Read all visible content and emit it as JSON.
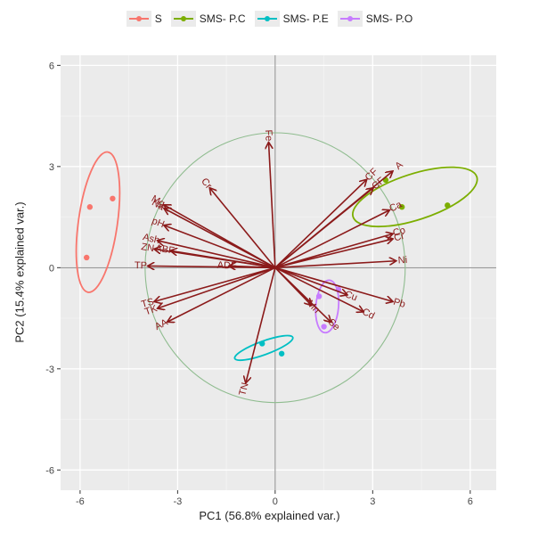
{
  "legend": {
    "items": [
      {
        "label": "S",
        "color": "#F8766D"
      },
      {
        "label": "SMS- P.C",
        "color": "#7CAE00"
      },
      {
        "label": "SMS- P.E",
        "color": "#00BFC4"
      },
      {
        "label": "SMS- P.O",
        "color": "#C77CFF"
      }
    ]
  },
  "chart_data": {
    "type": "scatter",
    "subtype": "pca-biplot",
    "xlabel": "PC1 (56.8% explained var.)",
    "ylabel": "PC2 (15.4% explained var.)",
    "xlim": [
      -6.6,
      6.8
    ],
    "ylim": [
      -6.6,
      6.3
    ],
    "xticks": [
      -6,
      -3,
      0,
      3,
      6
    ],
    "yticks": [
      -6,
      -3,
      0,
      3,
      6
    ],
    "xtick_labels": [
      "-6",
      "-3",
      "0",
      "3",
      "6"
    ],
    "ytick_labels": [
      "-6",
      "-3",
      "0",
      "3",
      "6"
    ],
    "grid": true,
    "legend_position": "top",
    "panel_color": "#EBEBEB",
    "arrow_color": "#8B1A1A",
    "circle_color": "#8FBC8F",
    "circle_radius": 4,
    "groups": [
      {
        "name": "S",
        "color": "#F8766D",
        "points": [
          [
            -5.7,
            1.8
          ],
          [
            -5.0,
            2.05
          ],
          [
            -5.8,
            0.3
          ]
        ],
        "ellipse": {
          "cx": -5.45,
          "cy": 1.35,
          "rx": 0.6,
          "ry": 2.1,
          "angle": 8
        }
      },
      {
        "name": "SMS- P.C",
        "color": "#7CAE00",
        "points": [
          [
            3.4,
            2.6
          ],
          [
            3.9,
            1.8
          ],
          [
            5.3,
            1.85
          ]
        ],
        "ellipse": {
          "cx": 4.3,
          "cy": 2.1,
          "rx": 2.0,
          "ry": 0.68,
          "angle": -18
        }
      },
      {
        "name": "SMS- P.E",
        "color": "#00BFC4",
        "points": [
          [
            -0.4,
            -2.25
          ],
          [
            0.2,
            -2.55
          ]
        ],
        "ellipse": {
          "cx": -0.35,
          "cy": -2.38,
          "rx": 0.95,
          "ry": 0.2,
          "angle": -20
        }
      },
      {
        "name": "SMS- P.O",
        "color": "#C77CFF",
        "points": [
          [
            1.35,
            -0.85
          ],
          [
            1.95,
            -0.65
          ],
          [
            1.5,
            -1.75
          ]
        ],
        "ellipse": {
          "cx": 1.6,
          "cy": -1.15,
          "rx": 0.35,
          "ry": 0.78,
          "angle": 5
        }
      }
    ],
    "loadings": [
      {
        "label": "Fe",
        "x": -0.2,
        "y": 3.7
      },
      {
        "label": "Cr",
        "x": -2.0,
        "y": 2.35
      },
      {
        "label": "Mg",
        "x": -3.4,
        "y": 1.85
      },
      {
        "label": "Na",
        "x": -3.4,
        "y": 1.75
      },
      {
        "label": "pH",
        "x": -3.4,
        "y": 1.25
      },
      {
        "label": "Ash",
        "x": -3.6,
        "y": 0.8
      },
      {
        "label": "ZN",
        "x": -3.7,
        "y": 0.55
      },
      {
        "label": "ABF",
        "x": -3.2,
        "y": 0.5
      },
      {
        "label": "TP",
        "x": -3.9,
        "y": 0.05
      },
      {
        "label": "ADF",
        "x": -1.4,
        "y": 0.05
      },
      {
        "label": "TS",
        "x": -3.7,
        "y": -1.0
      },
      {
        "label": "TK",
        "x": -3.6,
        "y": -1.2
      },
      {
        "label": "AA",
        "x": -3.3,
        "y": -1.6
      },
      {
        "label": "TN",
        "x": -0.9,
        "y": -3.4
      },
      {
        "label": "Mn",
        "x": 1.1,
        "y": -1.1
      },
      {
        "label": "Se",
        "x": 1.7,
        "y": -1.6
      },
      {
        "label": "Cu",
        "x": 2.2,
        "y": -0.8
      },
      {
        "label": "Cd",
        "x": 2.7,
        "y": -1.3
      },
      {
        "label": "Pb",
        "x": 3.6,
        "y": -1.0
      },
      {
        "label": "Ni",
        "x": 3.7,
        "y": 0.2
      },
      {
        "label": "Cr",
        "x": 3.6,
        "y": 0.85
      },
      {
        "label": "Co",
        "x": 3.6,
        "y": 1.0
      },
      {
        "label": "Ca",
        "x": 3.5,
        "y": 1.7
      },
      {
        "label": "CF",
        "x": 3.0,
        "y": 2.35
      },
      {
        "label": "CF",
        "x": 2.8,
        "y": 2.6
      },
      {
        "label": "A",
        "x": 3.6,
        "y": 2.85
      }
    ]
  }
}
